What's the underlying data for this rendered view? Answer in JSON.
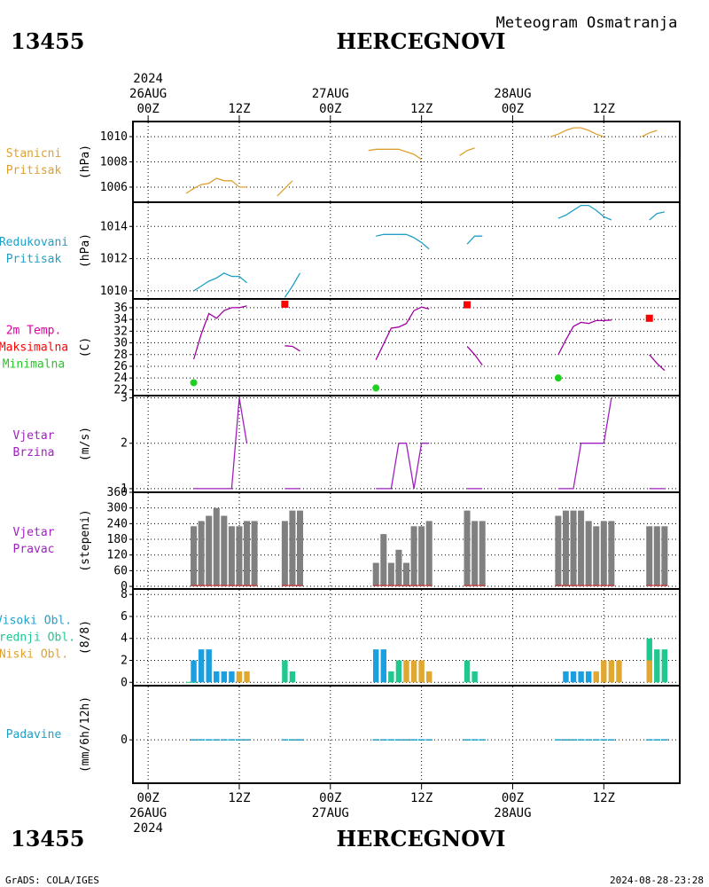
{
  "header": {
    "station_id": "13455",
    "station_name": "HERCEGNOVI",
    "subtitle": "Meteogram Osmatranja"
  },
  "footer": {
    "station_id": "13455",
    "station_name": "HERCEGNOVI",
    "credit": "GrADS: COLA/IGES",
    "timestamp": "2024-08-28-23:28"
  },
  "time_axis": {
    "hours_range": [
      -2,
      70
    ],
    "hour_ticks": [
      0,
      12,
      24,
      36,
      48,
      60
    ],
    "hour_tick_labels": [
      "00Z",
      "12Z",
      "00Z",
      "12Z",
      "00Z",
      "12Z"
    ],
    "date_labels": [
      {
        "hour": 0,
        "text": "26AUG"
      },
      {
        "hour": 24,
        "text": "27AUG"
      },
      {
        "hour": 48,
        "text": "28AUG"
      }
    ],
    "year_label": {
      "hour": 0,
      "text": "2024"
    }
  },
  "panels": [
    {
      "id": "stanicni",
      "labels": [
        "Stanicni",
        "Pritisak"
      ],
      "label_colors": [
        "#e0a030",
        "#e0a030"
      ],
      "unit": "(hPa)"
    },
    {
      "id": "redukovani",
      "labels": [
        "Redukovani",
        "Pritisak"
      ],
      "label_colors": [
        "#20a0c8",
        "#20a0c8"
      ],
      "unit": "(hPa)"
    },
    {
      "id": "temp",
      "labels": [
        "2m Temp.",
        "Maksimalna",
        "Minimalna"
      ],
      "label_colors": [
        "#e000a0",
        "#ff0000",
        "#20c820"
      ],
      "unit": "(C)"
    },
    {
      "id": "brzina",
      "labels": [
        "Vjetar",
        "Brzina"
      ],
      "label_colors": [
        "#a020c0",
        "#a020c0"
      ],
      "unit": "(m/s)"
    },
    {
      "id": "pravac",
      "labels": [
        "Vjetar",
        "Pravac"
      ],
      "label_colors": [
        "#a020c0",
        "#a020c0"
      ],
      "unit": "(stepeni)"
    },
    {
      "id": "oblaci",
      "labels": [
        "Visoki Obl.",
        "Srednji Obl.",
        "Niski Obl."
      ],
      "label_colors": [
        "#20a0c8",
        "#20c890",
        "#e0a030"
      ],
      "unit": "(8/8)"
    },
    {
      "id": "padavine",
      "labels": [
        "Padavine"
      ],
      "label_colors": [
        "#20a0c8"
      ],
      "unit": "(mm/6h/12h)"
    }
  ],
  "chart_data": [
    {
      "type": "line",
      "panel": "stanicni",
      "xlabel": "",
      "ylabel": "(hPa)",
      "ylim": [
        1004.8,
        1011.2
      ],
      "yticks": [
        1006,
        1008,
        1010
      ],
      "color": "#e0a030",
      "segments": [
        [
          [
            5,
            1005.5
          ],
          [
            6,
            1005.9
          ],
          [
            7,
            1006.2
          ],
          [
            8,
            1006.3
          ],
          [
            9,
            1006.7
          ],
          [
            10,
            1006.5
          ],
          [
            11,
            1006.5
          ],
          [
            12,
            1006.0
          ],
          [
            13,
            1006.0
          ]
        ],
        [
          [
            17,
            1005.3
          ],
          [
            18,
            1005.9
          ],
          [
            19,
            1006.5
          ]
        ],
        [
          [
            29,
            1008.9
          ],
          [
            30,
            1009.0
          ],
          [
            31,
            1009.0
          ],
          [
            32,
            1009.0
          ],
          [
            33,
            1009.0
          ],
          [
            34,
            1008.8
          ],
          [
            35,
            1008.6
          ],
          [
            36,
            1008.2
          ]
        ],
        [
          [
            41,
            1008.5
          ],
          [
            42,
            1008.9
          ],
          [
            43,
            1009.1
          ]
        ],
        [
          [
            53,
            1010.0
          ],
          [
            54,
            1010.2
          ],
          [
            55,
            1010.5
          ],
          [
            56,
            1010.7
          ],
          [
            57,
            1010.7
          ],
          [
            58,
            1010.5
          ],
          [
            59,
            1010.2
          ],
          [
            60,
            1010.0
          ]
        ],
        [
          [
            65,
            1010.0
          ],
          [
            66,
            1010.3
          ],
          [
            67,
            1010.5
          ]
        ]
      ]
    },
    {
      "type": "line",
      "panel": "redukovani",
      "xlabel": "",
      "ylabel": "(hPa)",
      "ylim": [
        1009.5,
        1015.5
      ],
      "yticks": [
        1010,
        1012,
        1014
      ],
      "color": "#20a0c8",
      "segments": [
        [
          [
            6,
            1010.0
          ],
          [
            7,
            1010.3
          ],
          [
            8,
            1010.6
          ],
          [
            9,
            1010.8
          ],
          [
            10,
            1011.1
          ],
          [
            11,
            1010.9
          ],
          [
            12,
            1010.9
          ],
          [
            13,
            1010.5
          ]
        ],
        [
          [
            18,
            1009.6
          ],
          [
            19,
            1010.3
          ],
          [
            20,
            1011.1
          ]
        ],
        [
          [
            30,
            1013.4
          ],
          [
            31,
            1013.5
          ],
          [
            32,
            1013.5
          ],
          [
            33,
            1013.5
          ],
          [
            34,
            1013.5
          ],
          [
            35,
            1013.3
          ],
          [
            36,
            1013.0
          ],
          [
            37,
            1012.6
          ]
        ],
        [
          [
            42,
            1012.9
          ],
          [
            43,
            1013.4
          ],
          [
            44,
            1013.4
          ]
        ],
        [
          [
            54,
            1014.5
          ],
          [
            55,
            1014.7
          ],
          [
            56,
            1015.0
          ],
          [
            57,
            1015.3
          ],
          [
            58,
            1015.3
          ],
          [
            59,
            1015.0
          ],
          [
            60,
            1014.6
          ],
          [
            61,
            1014.4
          ]
        ],
        [
          [
            66,
            1014.4
          ],
          [
            67,
            1014.8
          ],
          [
            68,
            1014.9
          ]
        ]
      ]
    },
    {
      "type": "line",
      "panel": "temp",
      "xlabel": "",
      "ylabel": "(C)",
      "ylim": [
        21,
        37.5
      ],
      "yticks": [
        22,
        24,
        26,
        28,
        30,
        32,
        34,
        36
      ],
      "color": "#a000a0",
      "segments": [
        [
          [
            6,
            27.2
          ],
          [
            7,
            31.5
          ],
          [
            8,
            35.0
          ],
          [
            9,
            34.2
          ],
          [
            10,
            35.5
          ],
          [
            11,
            36.0
          ],
          [
            12,
            36.0
          ],
          [
            13,
            36.3
          ]
        ],
        [
          [
            18,
            29.5
          ],
          [
            19,
            29.4
          ],
          [
            20,
            28.6
          ]
        ],
        [
          [
            30,
            27.1
          ],
          [
            31,
            29.8
          ],
          [
            32,
            32.5
          ],
          [
            33,
            32.7
          ],
          [
            34,
            33.3
          ],
          [
            35,
            35.5
          ],
          [
            36,
            36.1
          ],
          [
            37,
            35.8
          ]
        ],
        [
          [
            42,
            29.4
          ],
          [
            43,
            28.0
          ],
          [
            44,
            26.2
          ]
        ],
        [
          [
            54,
            28.0
          ],
          [
            55,
            30.5
          ],
          [
            56,
            32.8
          ],
          [
            57,
            33.5
          ],
          [
            58,
            33.3
          ],
          [
            59,
            33.8
          ],
          [
            60,
            33.8
          ],
          [
            61,
            33.9
          ]
        ],
        [
          [
            66,
            28.0
          ],
          [
            67,
            26.5
          ],
          [
            68,
            25.3
          ]
        ]
      ],
      "max_points": [
        [
          18,
          36.6
        ],
        [
          42,
          36.5
        ],
        [
          66,
          34.2
        ]
      ],
      "min_points": [
        [
          6,
          23.2
        ],
        [
          30,
          22.3
        ],
        [
          54,
          24.0
        ]
      ],
      "max_color": "#ff0000",
      "min_color": "#20d020"
    },
    {
      "type": "line",
      "panel": "brzina",
      "xlabel": "",
      "ylabel": "(m/s)",
      "ylim": [
        0.92,
        3.05
      ],
      "yticks": [
        1,
        2,
        3
      ],
      "color": "#a020c0",
      "segments": [
        [
          [
            6,
            1
          ],
          [
            7,
            1
          ],
          [
            8,
            1
          ],
          [
            9,
            1
          ],
          [
            10,
            1
          ],
          [
            11,
            1
          ],
          [
            12,
            3
          ],
          [
            13,
            2
          ]
        ],
        [
          [
            18,
            1
          ],
          [
            19,
            1
          ],
          [
            20,
            1
          ]
        ],
        [
          [
            30,
            1
          ],
          [
            31,
            1
          ],
          [
            32,
            1
          ],
          [
            33,
            2
          ],
          [
            34,
            2
          ],
          [
            35,
            1
          ],
          [
            36,
            2
          ],
          [
            37,
            2
          ]
        ],
        [
          [
            42,
            1
          ],
          [
            43,
            1
          ],
          [
            44,
            1
          ]
        ],
        [
          [
            54,
            1
          ],
          [
            55,
            1
          ],
          [
            56,
            1
          ],
          [
            57,
            2
          ],
          [
            58,
            2
          ],
          [
            59,
            2
          ],
          [
            60,
            2
          ],
          [
            61,
            3
          ]
        ],
        [
          [
            66,
            1
          ],
          [
            67,
            1
          ],
          [
            68,
            1
          ]
        ]
      ]
    },
    {
      "type": "bar",
      "panel": "pravac",
      "xlabel": "",
      "ylabel": "(stepeni)",
      "ylim": [
        -10,
        360
      ],
      "yticks": [
        0,
        60,
        120,
        180,
        240,
        300,
        360
      ],
      "color": "#808080",
      "bars": [
        [
          6,
          230
        ],
        [
          7,
          250
        ],
        [
          8,
          270
        ],
        [
          9,
          300
        ],
        [
          10,
          270
        ],
        [
          11,
          230
        ],
        [
          12,
          230
        ],
        [
          13,
          250
        ],
        [
          14,
          250
        ],
        [
          18,
          250
        ],
        [
          19,
          290
        ],
        [
          20,
          290
        ],
        [
          30,
          90
        ],
        [
          31,
          200
        ],
        [
          32,
          90
        ],
        [
          33,
          140
        ],
        [
          34,
          90
        ],
        [
          35,
          230
        ],
        [
          36,
          230
        ],
        [
          37,
          250
        ],
        [
          42,
          290
        ],
        [
          43,
          250
        ],
        [
          44,
          250
        ],
        [
          54,
          270
        ],
        [
          55,
          290
        ],
        [
          56,
          290
        ],
        [
          57,
          290
        ],
        [
          58,
          250
        ],
        [
          59,
          230
        ],
        [
          60,
          250
        ],
        [
          61,
          250
        ],
        [
          66,
          230
        ],
        [
          67,
          230
        ],
        [
          68,
          230
        ]
      ]
    },
    {
      "type": "bar",
      "panel": "oblaci",
      "xlabel": "",
      "ylabel": "(8/8)",
      "ylim": [
        -0.3,
        8.5
      ],
      "yticks": [
        0,
        2,
        4,
        6,
        8
      ],
      "series": [
        {
          "name": "Visoki Obl.",
          "color": "#1aa0e0",
          "values": [
            [
              6,
              2
            ],
            [
              7,
              3
            ],
            [
              8,
              3
            ],
            [
              9,
              1
            ],
            [
              10,
              1
            ],
            [
              11,
              1
            ],
            [
              30,
              3
            ],
            [
              31,
              3
            ],
            [
              55,
              1
            ],
            [
              56,
              1
            ],
            [
              57,
              1
            ],
            [
              58,
              1
            ]
          ]
        },
        {
          "name": "Srednji Obl.",
          "color": "#20c890",
          "values": [
            [
              18,
              2
            ],
            [
              19,
              1
            ],
            [
              32,
              1
            ],
            [
              33,
              2
            ],
            [
              42,
              2
            ],
            [
              43,
              1
            ],
            [
              66,
              4
            ],
            [
              67,
              3
            ],
            [
              68,
              3
            ]
          ]
        },
        {
          "name": "Niski Obl.",
          "color": "#e0a830",
          "values": [
            [
              12,
              1
            ],
            [
              13,
              1
            ],
            [
              34,
              2
            ],
            [
              35,
              2
            ],
            [
              36,
              2
            ],
            [
              37,
              1
            ],
            [
              59,
              1
            ],
            [
              60,
              2
            ],
            [
              61,
              2
            ],
            [
              62,
              2
            ],
            [
              66,
              2
            ]
          ]
        }
      ]
    },
    {
      "type": "bar",
      "panel": "padavine",
      "xlabel": "",
      "ylabel": "(mm/6h/12h)",
      "ylim": [
        -2,
        2.5
      ],
      "yticks": [
        0
      ],
      "color": "#20a0c8",
      "values": [
        [
          6,
          0
        ],
        [
          7,
          0
        ],
        [
          8,
          0
        ],
        [
          9,
          0
        ],
        [
          10,
          0
        ],
        [
          11,
          0
        ],
        [
          12,
          0
        ],
        [
          13,
          0
        ],
        [
          18,
          0
        ],
        [
          19,
          0
        ],
        [
          20,
          0
        ],
        [
          30,
          0
        ],
        [
          31,
          0
        ],
        [
          32,
          0
        ],
        [
          33,
          0
        ],
        [
          34,
          0
        ],
        [
          35,
          0
        ],
        [
          36,
          0
        ],
        [
          37,
          0
        ],
        [
          42,
          0
        ],
        [
          43,
          0
        ],
        [
          44,
          0
        ],
        [
          54,
          0
        ],
        [
          55,
          0
        ],
        [
          56,
          0
        ],
        [
          57,
          0
        ],
        [
          58,
          0
        ],
        [
          59,
          0
        ],
        [
          60,
          0
        ],
        [
          61,
          0
        ],
        [
          66,
          0
        ],
        [
          67,
          0
        ],
        [
          68,
          0
        ]
      ]
    }
  ]
}
